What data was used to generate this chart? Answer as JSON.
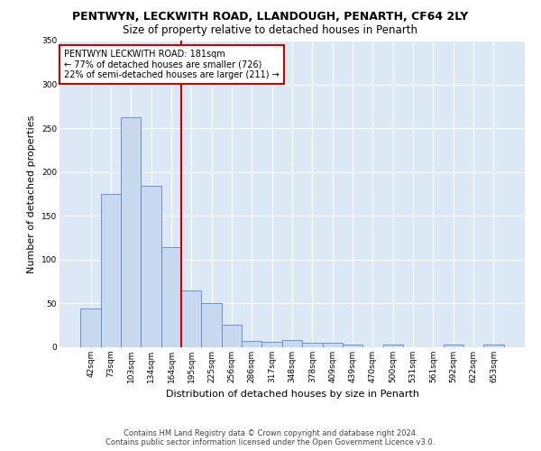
{
  "title": "PENTWYN, LECKWITH ROAD, LLANDOUGH, PENARTH, CF64 2LY",
  "subtitle": "Size of property relative to detached houses in Penarth",
  "xlabel": "Distribution of detached houses by size in Penarth",
  "ylabel": "Number of detached properties",
  "categories": [
    "42sqm",
    "73sqm",
    "103sqm",
    "134sqm",
    "164sqm",
    "195sqm",
    "225sqm",
    "256sqm",
    "286sqm",
    "317sqm",
    "348sqm",
    "378sqm",
    "409sqm",
    "439sqm",
    "470sqm",
    "500sqm",
    "531sqm",
    "561sqm",
    "592sqm",
    "622sqm",
    "653sqm"
  ],
  "values": [
    44,
    175,
    262,
    184,
    114,
    65,
    50,
    26,
    7,
    6,
    8,
    5,
    5,
    3,
    0,
    3,
    0,
    0,
    3,
    0,
    3
  ],
  "bar_color": "#c8d8ee",
  "bar_edge_color": "#5588cc",
  "vline_index": 4.5,
  "vline_color": "#cc0000",
  "ylim": [
    0,
    350
  ],
  "yticks": [
    0,
    50,
    100,
    150,
    200,
    250,
    300,
    350
  ],
  "annotation_text": "PENTWYN LECKWITH ROAD: 181sqm\n← 77% of detached houses are smaller (726)\n22% of semi-detached houses are larger (211) →",
  "annotation_box_color": "#ffffff",
  "annotation_box_edge_color": "#cc0000",
  "footer_line1": "Contains HM Land Registry data © Crown copyright and database right 2024.",
  "footer_line2": "Contains public sector information licensed under the Open Government Licence v3.0.",
  "bg_color": "#dce8f5",
  "grid_color": "#ffffff",
  "fig_bg_color": "#ffffff",
  "title_fontsize": 9,
  "subtitle_fontsize": 8.5,
  "axis_label_fontsize": 8,
  "tick_fontsize": 6.5,
  "annotation_fontsize": 7,
  "footer_fontsize": 6
}
